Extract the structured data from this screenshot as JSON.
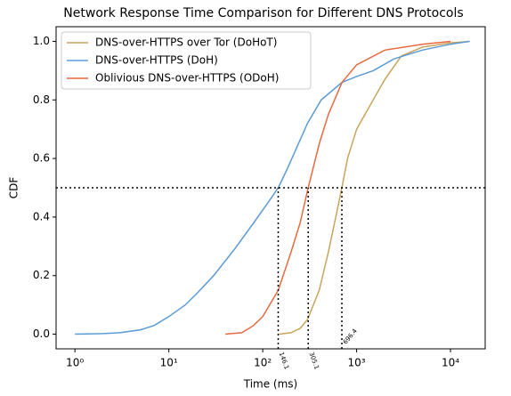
{
  "chart_data": {
    "type": "line",
    "title": "Network Response Time Comparison for Different DNS Protocols",
    "x_label": "Time (ms)",
    "y_label": "CDF",
    "log_x": true,
    "xlim": [
      0.63,
      23400
    ],
    "ylim": [
      -0.05,
      1.05
    ],
    "xticks": [
      {
        "value": 1,
        "label": "10⁰"
      },
      {
        "value": 10,
        "label": "10¹"
      },
      {
        "value": 100,
        "label": "10²"
      },
      {
        "value": 1000,
        "label": "10³"
      },
      {
        "value": 10000,
        "label": "10⁴"
      }
    ],
    "yticks": [
      {
        "value": 0,
        "label": "0.0"
      },
      0.2,
      0.4,
      0.6,
      0.8,
      {
        "value": 1,
        "label": "1.0"
      }
    ],
    "legend_position": "upper left",
    "hline": 0.5,
    "median_markers": [
      146.1,
      305.1,
      696.4
    ],
    "series": [
      {
        "name": "DNS-over-HTTPS over Tor (DoHoT)",
        "color": "#c9a45c",
        "x": [
          150,
          200,
          250,
          300,
          400,
          500,
          600,
          696.4,
          800,
          1000,
          1500,
          2000,
          3000,
          5000,
          10000,
          16000
        ],
        "values": [
          0,
          0.005,
          0.02,
          0.05,
          0.15,
          0.28,
          0.4,
          0.5,
          0.6,
          0.7,
          0.8,
          0.87,
          0.95,
          0.98,
          0.995,
          1.0
        ]
      },
      {
        "name": "DNS-over-HTTPS (DoH)",
        "color": "#5b9bd5",
        "x": [
          1,
          2,
          3,
          5,
          7,
          10,
          15,
          20,
          30,
          50,
          80,
          120,
          146.1,
          180,
          240,
          300,
          420,
          700,
          1000,
          1500,
          2500,
          5000,
          10000,
          16000
        ],
        "values": [
          0,
          0.002,
          0.005,
          0.015,
          0.03,
          0.06,
          0.1,
          0.14,
          0.2,
          0.29,
          0.38,
          0.46,
          0.5,
          0.56,
          0.65,
          0.72,
          0.8,
          0.86,
          0.88,
          0.9,
          0.94,
          0.97,
          0.99,
          1.0
        ]
      },
      {
        "name": "Oblivious DNS-over-HTTPS (ODoH)",
        "color": "#e8693f",
        "x": [
          40,
          60,
          80,
          100,
          146.1,
          200,
          250,
          305.1,
          400,
          500,
          700,
          1000,
          2000,
          5000,
          10000
        ],
        "values": [
          0,
          0.005,
          0.03,
          0.06,
          0.15,
          0.28,
          0.38,
          0.5,
          0.65,
          0.75,
          0.86,
          0.92,
          0.97,
          0.99,
          1.0
        ]
      }
    ]
  }
}
